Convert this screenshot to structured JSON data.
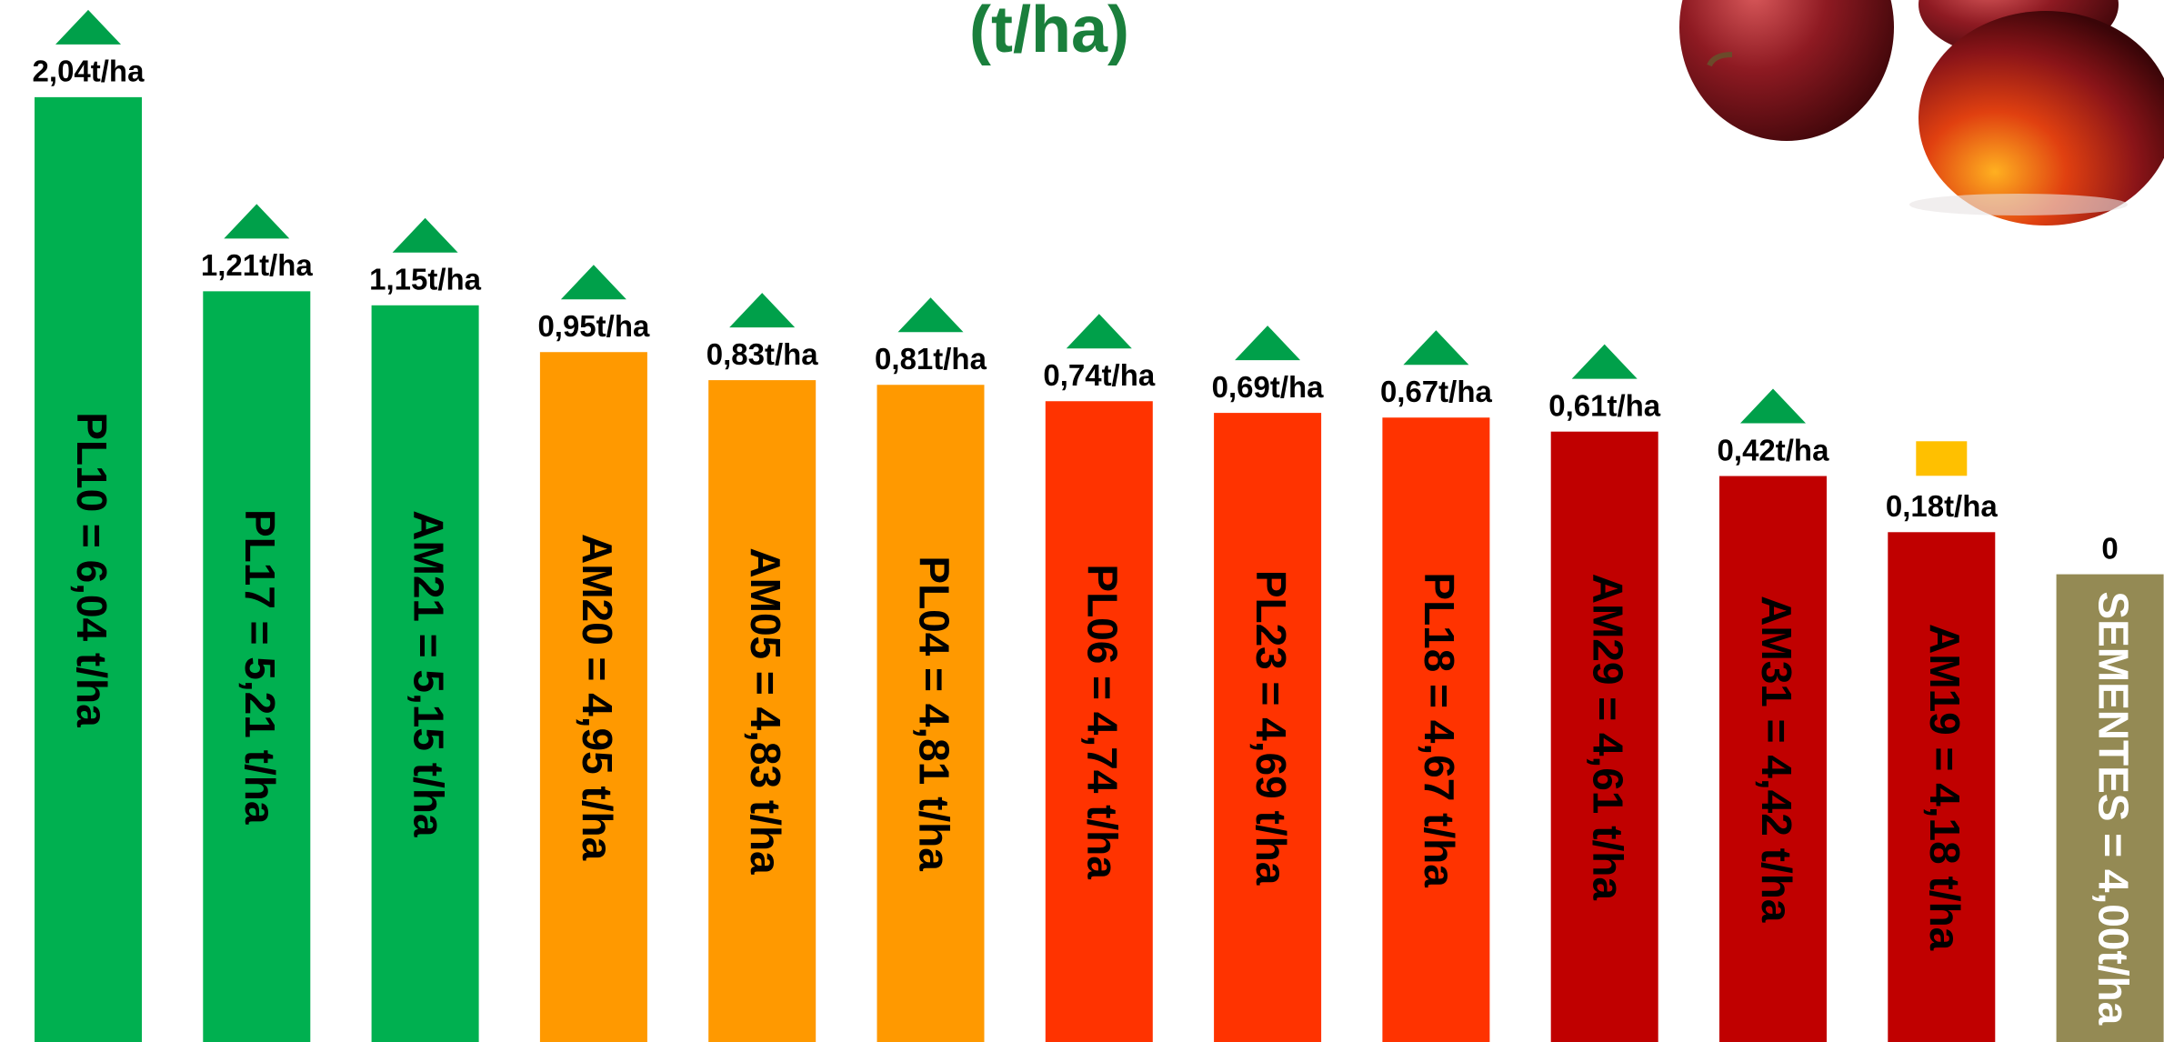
{
  "chart_data": {
    "type": "bar",
    "title": "(t/ha)",
    "categories": [
      "PL10 = 6,04 t/ha",
      "PL17 = 5,21 t/ha",
      "AM21 = 5,15 t/ha",
      "AM20 = 4,95 t/ha",
      "AM05 = 4,83 t/ha",
      "PL04 = 4,81 t/ha",
      "PL06 = 4,74 t/ha",
      "PL23 = 4,69 t/ha",
      "PL18 = 4,67 t/ha",
      "AM29 = 4,61 t/ha",
      "AM31 = 4,42 t/ha",
      "AM19 = 4,18 t/ha",
      "SEMENTES = 4,00t/ha"
    ],
    "values": [
      6.04,
      5.21,
      5.15,
      4.95,
      4.83,
      4.81,
      4.74,
      4.69,
      4.67,
      4.61,
      4.42,
      4.18,
      4.0
    ],
    "colors": [
      "#00b050",
      "#00b050",
      "#00b050",
      "#ff9900",
      "#ff9900",
      "#ff9900",
      "#ff3300",
      "#ff3300",
      "#ff3300",
      "#c00000",
      "#c00000",
      "#c00000",
      "#948a54"
    ],
    "label_colors": [
      "#000000",
      "#000000",
      "#000000",
      "#000000",
      "#000000",
      "#000000",
      "#000000",
      "#000000",
      "#000000",
      "#000000",
      "#000000",
      "#000000",
      "#ffffff"
    ],
    "ylim": [
      2.0,
      6.3
    ],
    "gains": {
      "values": [
        2.04,
        1.21,
        1.15,
        0.95,
        0.83,
        0.81,
        0.74,
        0.69,
        0.67,
        0.61,
        0.42,
        0.18,
        0
      ],
      "value_labels": [
        "2,04t/ha",
        "1,21t/ha",
        "1,15t/ha",
        "0,95t/ha",
        "0,83t/ha",
        "0,81t/ha",
        "0,74t/ha",
        "0,69t/ha",
        "0,67t/ha",
        "0,61t/ha",
        "0,42t/ha",
        "0,18t/ha",
        "0"
      ],
      "markers": [
        "triangle",
        "triangle",
        "triangle",
        "triangle",
        "triangle",
        "triangle",
        "triangle",
        "triangle",
        "triangle",
        "triangle",
        "triangle",
        "square",
        "none"
      ],
      "marker_colors": [
        "#00a04a",
        "#00a04a",
        "#00a04a",
        "#00a04a",
        "#00a04a",
        "#00a04a",
        "#00a04a",
        "#00a04a",
        "#00a04a",
        "#00a04a",
        "#00a04a",
        "#ffc000",
        "#00a04a"
      ]
    }
  }
}
